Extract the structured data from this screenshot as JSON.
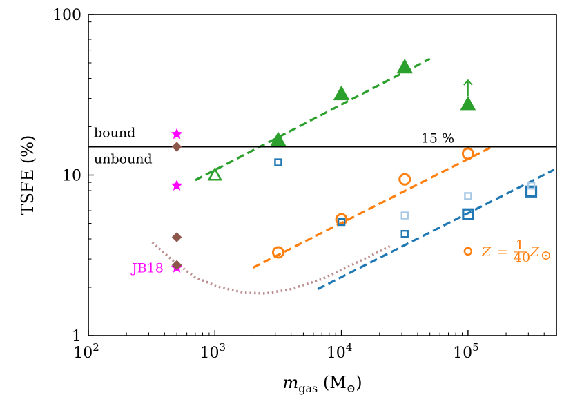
{
  "chart_data": {
    "type": "scatter",
    "xscale": "log",
    "yscale": "log",
    "xlim": [
      100,
      500000
    ],
    "ylim": [
      1,
      100
    ],
    "xlabel_main": "m",
    "xlabel_sub": "gas",
    "xlabel_unit_open": " (M",
    "xlabel_unit_close": ")",
    "ylabel": "TSFE (%)",
    "x_ticks": [
      {
        "value": 100,
        "base": "10",
        "exp": "2"
      },
      {
        "value": 1000,
        "base": "10",
        "exp": "3"
      },
      {
        "value": 10000,
        "base": "10",
        "exp": "4"
      },
      {
        "value": 100000,
        "base": "10",
        "exp": "5"
      }
    ],
    "y_ticks": [
      {
        "value": 1,
        "label": "1"
      },
      {
        "value": 10,
        "label": "10"
      },
      {
        "value": 100,
        "label": "100"
      }
    ],
    "threshold": {
      "value": 15,
      "label": "15 %",
      "above_label": "bound",
      "below_label": "unbound",
      "label_x": 20000
    },
    "series": [
      {
        "name": "green-filled-triangles",
        "marker": "triangle",
        "filled": true,
        "color": "#2ca02c",
        "points": [
          [
            3162,
            16.5
          ],
          [
            10000,
            32
          ],
          [
            31623,
            47
          ],
          [
            100000,
            27.5
          ]
        ]
      },
      {
        "name": "green-open-triangle",
        "marker": "triangle",
        "filled": false,
        "color": "#2ca02c",
        "points": [
          [
            1000,
            10
          ]
        ]
      },
      {
        "name": "orange-circles",
        "marker": "circle",
        "filled": false,
        "color": "#ff7f0e",
        "points": [
          [
            3162,
            3.3
          ],
          [
            10000,
            5.3
          ],
          [
            31623,
            9.4
          ],
          [
            100000,
            13.6
          ]
        ]
      },
      {
        "name": "blue-large-squares",
        "marker": "square",
        "size": "large",
        "filled": false,
        "color": "#1f77b4",
        "points": [
          [
            100000,
            5.7
          ],
          [
            316228,
            7.9
          ]
        ]
      },
      {
        "name": "blue-small-squares",
        "marker": "square",
        "size": "small",
        "filled": false,
        "color": "#1f77b4",
        "points": [
          [
            3162,
            12
          ],
          [
            10000,
            5.1
          ],
          [
            31623,
            4.3
          ]
        ]
      },
      {
        "name": "lightblue-small-squares",
        "marker": "square",
        "size": "small",
        "filled": false,
        "color": "#a6c8e4",
        "points": [
          [
            31623,
            5.6
          ],
          [
            100000,
            7.4
          ],
          [
            316228,
            8.6
          ]
        ]
      },
      {
        "name": "magenta-stars",
        "marker": "star",
        "filled": true,
        "color": "#ff00ff",
        "points": [
          [
            500,
            18
          ],
          [
            500,
            8.6
          ],
          [
            500,
            2.65
          ]
        ]
      },
      {
        "name": "brown-diamonds",
        "marker": "diamond",
        "filled": true,
        "color": "#8c564b",
        "points": [
          [
            500,
            15
          ],
          [
            500,
            4.1
          ],
          [
            500,
            2.75
          ]
        ]
      }
    ],
    "fit_lines": [
      {
        "name": "green-fit",
        "color": "#2ca02c",
        "style": "dashed",
        "points": [
          [
            700,
            9.3
          ],
          [
            50000,
            53
          ]
        ]
      },
      {
        "name": "orange-fit",
        "color": "#ff7f0e",
        "style": "dashed",
        "points": [
          [
            2000,
            2.65
          ],
          [
            150000,
            14.8
          ]
        ]
      },
      {
        "name": "blue-fit",
        "color": "#1f77b4",
        "style": "dashed",
        "points": [
          [
            6500,
            1.95
          ],
          [
            480000,
            10.8
          ]
        ]
      },
      {
        "name": "brown-dotted-curve",
        "color": "#bc8f8f",
        "style": "dotted",
        "points": [
          [
            320,
            3.8
          ],
          [
            450,
            3.0
          ],
          [
            700,
            2.3
          ],
          [
            1100,
            2.0
          ],
          [
            1700,
            1.85
          ],
          [
            2500,
            1.83
          ],
          [
            4000,
            1.95
          ],
          [
            7000,
            2.25
          ],
          [
            12000,
            2.75
          ],
          [
            25000,
            3.65
          ]
        ]
      }
    ],
    "upper_limit_arrow": {
      "x": 100000,
      "from": 31,
      "to": 39,
      "color": "#2ca02c"
    },
    "annotations": {
      "jb18": {
        "text": "JB18",
        "color": "#ff00ff",
        "x": 480,
        "y": 2.65
      },
      "metallicity_legend": {
        "marker_x": 100000,
        "marker_y": 3.35,
        "color": "#ff7f0e",
        "lhs": "Z",
        "eq": "=",
        "num": "1",
        "den": "40",
        "rhs": "Z",
        "sun": "⊙"
      }
    }
  }
}
